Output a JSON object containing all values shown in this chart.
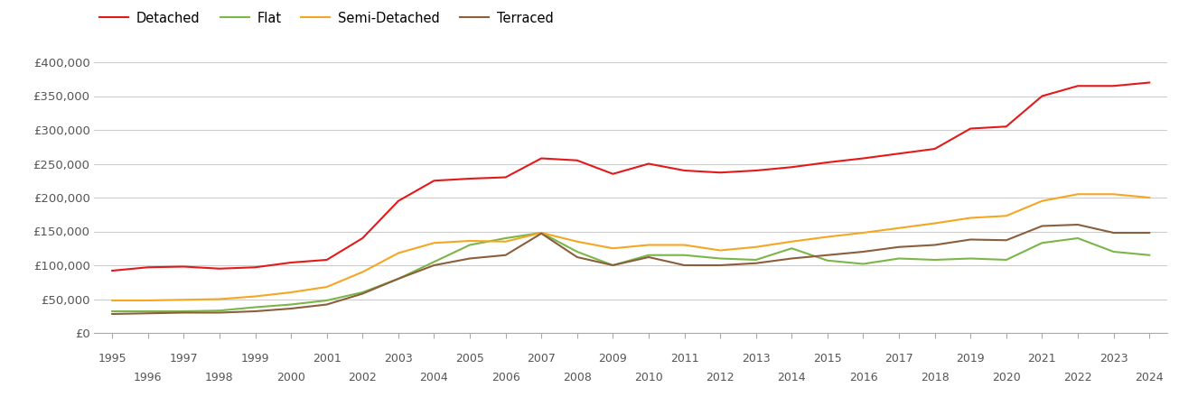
{
  "years": [
    1995,
    1996,
    1997,
    1998,
    1999,
    2000,
    2001,
    2002,
    2003,
    2004,
    2005,
    2006,
    2007,
    2008,
    2009,
    2010,
    2011,
    2012,
    2013,
    2014,
    2015,
    2016,
    2017,
    2018,
    2019,
    2020,
    2021,
    2022,
    2023,
    2024
  ],
  "detached": [
    92000,
    97000,
    98000,
    95000,
    97000,
    104000,
    108000,
    140000,
    195000,
    225000,
    228000,
    230000,
    258000,
    255000,
    235000,
    250000,
    240000,
    237000,
    240000,
    245000,
    252000,
    258000,
    265000,
    272000,
    302000,
    305000,
    350000,
    365000,
    365000,
    370000
  ],
  "flat": [
    32000,
    32000,
    32000,
    33000,
    38000,
    42000,
    48000,
    60000,
    80000,
    105000,
    130000,
    140000,
    148000,
    120000,
    100000,
    115000,
    115000,
    110000,
    108000,
    125000,
    107000,
    102000,
    110000,
    108000,
    110000,
    108000,
    133000,
    140000,
    120000,
    115000
  ],
  "semi_detached": [
    48000,
    48000,
    49000,
    50000,
    54000,
    60000,
    68000,
    90000,
    118000,
    133000,
    136000,
    135000,
    148000,
    135000,
    125000,
    130000,
    130000,
    122000,
    127000,
    135000,
    142000,
    148000,
    155000,
    162000,
    170000,
    173000,
    195000,
    205000,
    205000,
    200000
  ],
  "terraced": [
    28000,
    29000,
    30000,
    30000,
    32000,
    36000,
    42000,
    58000,
    80000,
    100000,
    110000,
    115000,
    147000,
    112000,
    100000,
    112000,
    100000,
    100000,
    103000,
    110000,
    115000,
    120000,
    127000,
    130000,
    138000,
    137000,
    158000,
    160000,
    148000,
    148000
  ],
  "colors": {
    "detached": "#e3191a",
    "flat": "#7ab648",
    "semi_detached": "#f5a623",
    "terraced": "#8b5e3c"
  },
  "ylim": [
    0,
    420000
  ],
  "yticks": [
    0,
    50000,
    100000,
    150000,
    200000,
    250000,
    300000,
    350000,
    400000
  ],
  "xlim": [
    1994.5,
    2024.5
  ],
  "grid_color": "#cccccc",
  "spine_color": "#aaaaaa",
  "tick_color": "#555555",
  "legend_labels": [
    "Detached",
    "Flat",
    "Semi-Detached",
    "Terraced"
  ]
}
